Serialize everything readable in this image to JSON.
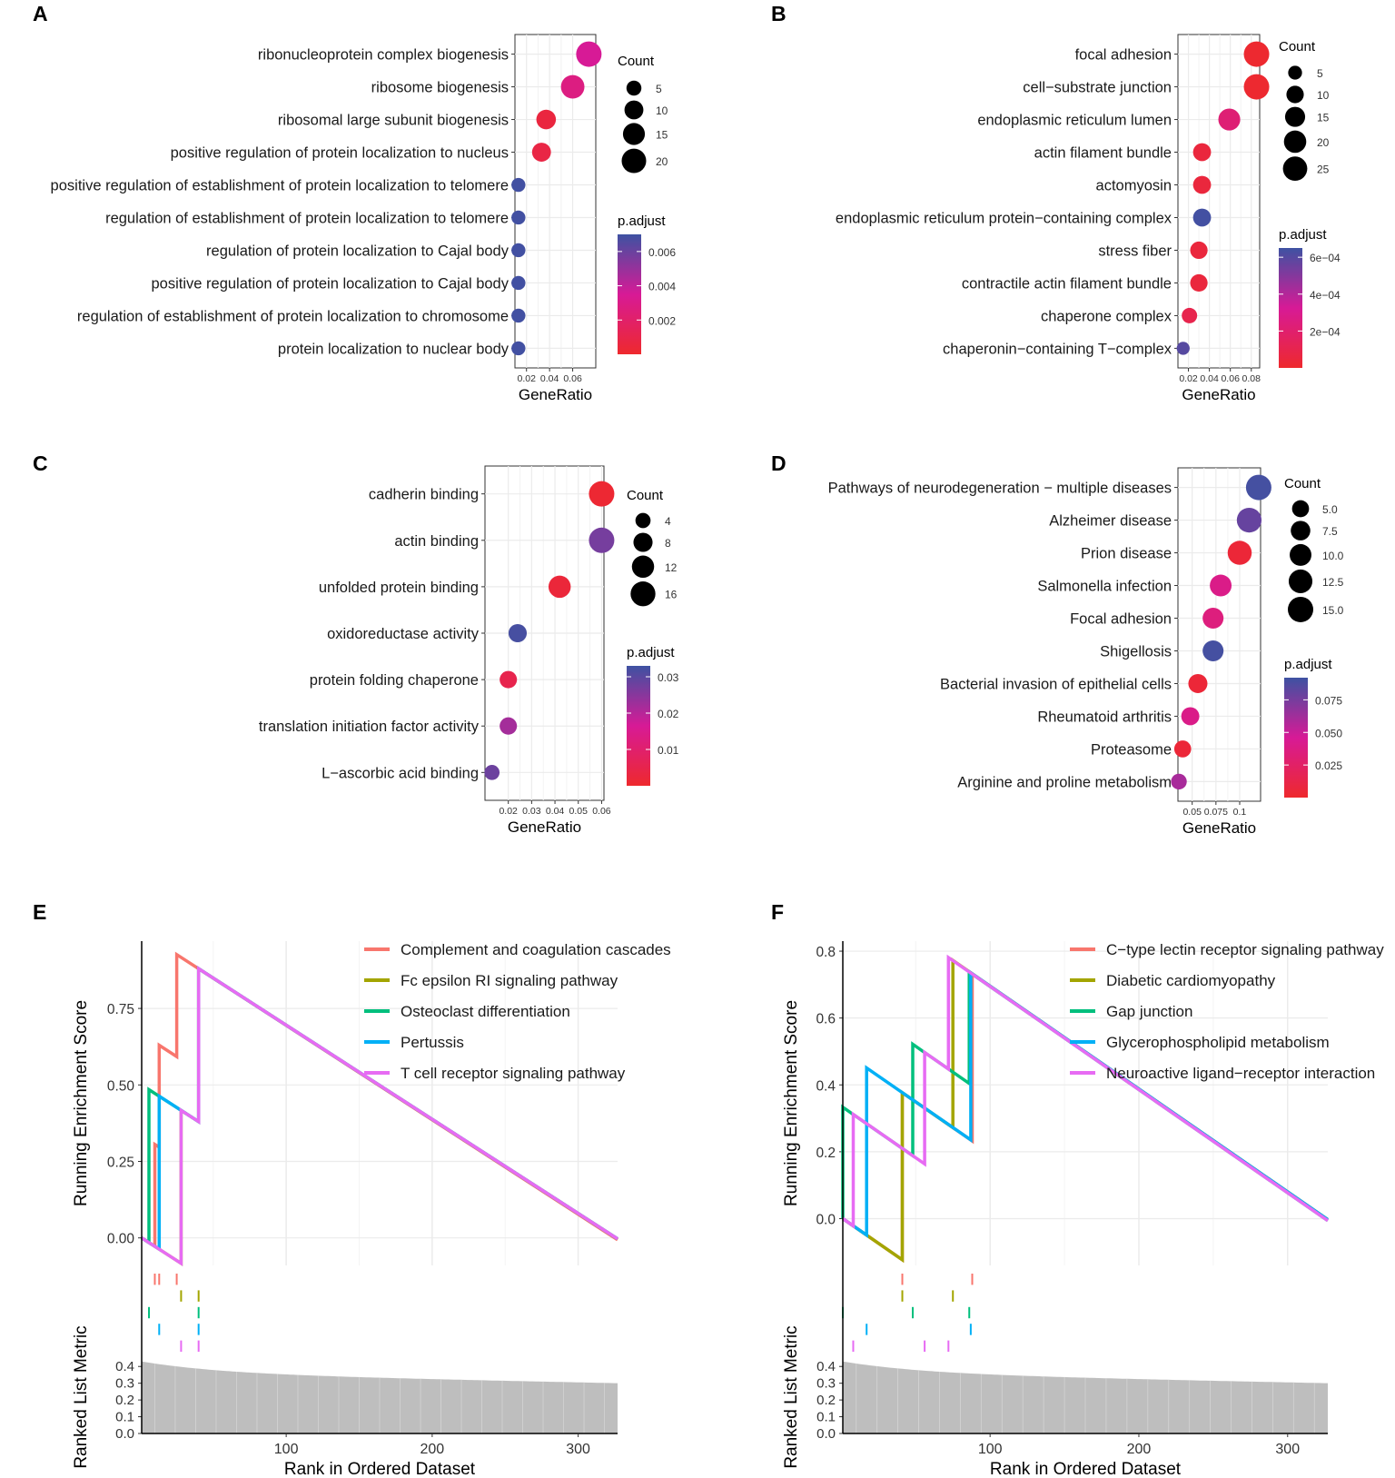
{
  "chart_data": [
    {
      "panel": "A",
      "type": "scatter",
      "xlabel": "GeneRatio",
      "x_ticks": [
        0.02,
        0.04,
        0.06
      ],
      "x_tick_labels": [
        "0.02",
        "0.04",
        "0.06"
      ],
      "xlim": [
        0.01,
        0.08
      ],
      "terms": [
        {
          "term": "ribonucleoprotein complex biogenesis",
          "gene_ratio": 0.074,
          "count": 22,
          "p_adjust": 0.0035
        },
        {
          "term": "ribosome biogenesis",
          "gene_ratio": 0.06,
          "count": 18,
          "p_adjust": 0.0028
        },
        {
          "term": "ribosomal large subunit biogenesis",
          "gene_ratio": 0.037,
          "count": 11,
          "p_adjust": 0.0006
        },
        {
          "term": "positive regulation of protein localization to nucleus",
          "gene_ratio": 0.033,
          "count": 10,
          "p_adjust": 0.0008
        },
        {
          "term": "positive regulation of establishment of protein localization to telomere",
          "gene_ratio": 0.013,
          "count": 4,
          "p_adjust": 0.0069
        },
        {
          "term": "regulation of establishment of protein localization to telomere",
          "gene_ratio": 0.013,
          "count": 4,
          "p_adjust": 0.0069
        },
        {
          "term": "regulation of protein localization to Cajal body",
          "gene_ratio": 0.013,
          "count": 4,
          "p_adjust": 0.0069
        },
        {
          "term": "positive regulation of protein localization to Cajal body",
          "gene_ratio": 0.013,
          "count": 4,
          "p_adjust": 0.0069
        },
        {
          "term": "regulation of establishment of protein localization to chromosome",
          "gene_ratio": 0.013,
          "count": 4,
          "p_adjust": 0.0069
        },
        {
          "term": "protein localization to nuclear body",
          "gene_ratio": 0.013,
          "count": 4,
          "p_adjust": 0.0069
        }
      ],
      "count_legend": {
        "title": "Count",
        "values": [
          5,
          10,
          15,
          20
        ],
        "labels": [
          "5",
          "10",
          "15",
          "20"
        ]
      },
      "color_legend": {
        "title": "p.adjust",
        "min": 0.0,
        "max": 0.007,
        "ticks": [
          0.002,
          0.004,
          0.006
        ],
        "labels": [
          "0.002",
          "0.004",
          "0.006"
        ]
      }
    },
    {
      "panel": "B",
      "type": "scatter",
      "xlabel": "GeneRatio",
      "x_ticks": [
        0.02,
        0.04,
        0.06,
        0.08
      ],
      "x_tick_labels": [
        "0.02",
        "0.04",
        "0.06",
        "0.08"
      ],
      "xlim": [
        0.01,
        0.088
      ],
      "terms": [
        {
          "term": "focal adhesion",
          "gene_ratio": 0.085,
          "count": 28,
          "p_adjust": 1e-05
        },
        {
          "term": "cell−substrate junction",
          "gene_ratio": 0.085,
          "count": 28,
          "p_adjust": 1e-05
        },
        {
          "term": "endoplasmic reticulum lumen",
          "gene_ratio": 0.059,
          "count": 19,
          "p_adjust": 0.00022
        },
        {
          "term": "actin filament bundle",
          "gene_ratio": 0.033,
          "count": 11,
          "p_adjust": 5e-05
        },
        {
          "term": "actomyosin",
          "gene_ratio": 0.033,
          "count": 11,
          "p_adjust": 5e-05
        },
        {
          "term": "endoplasmic reticulum protein−containing complex",
          "gene_ratio": 0.033,
          "count": 11,
          "p_adjust": 0.00064
        },
        {
          "term": "stress fiber",
          "gene_ratio": 0.03,
          "count": 10,
          "p_adjust": 5e-05
        },
        {
          "term": "contractile actin filament bundle",
          "gene_ratio": 0.03,
          "count": 10,
          "p_adjust": 5e-05
        },
        {
          "term": "chaperone complex",
          "gene_ratio": 0.021,
          "count": 7,
          "p_adjust": 0.0001
        },
        {
          "term": "chaperonin−containing T−complex",
          "gene_ratio": 0.015,
          "count": 4,
          "p_adjust": 0.0006
        }
      ],
      "count_legend": {
        "title": "Count",
        "values": [
          5,
          10,
          15,
          20,
          25
        ],
        "labels": [
          "5",
          "10",
          "15",
          "20",
          "25"
        ]
      },
      "color_legend": {
        "title": "p.adjust",
        "min": 0.0,
        "max": 0.00065,
        "ticks": [
          0.0002,
          0.0004,
          0.0006
        ],
        "labels": [
          "2e−04",
          "4e−04",
          "6e−04"
        ]
      }
    },
    {
      "panel": "C",
      "type": "scatter",
      "xlabel": "GeneRatio",
      "x_ticks": [
        0.02,
        0.03,
        0.04,
        0.05,
        0.06
      ],
      "x_tick_labels": [
        "0.02",
        "0.03",
        "0.04",
        "0.05",
        "0.06"
      ],
      "xlim": [
        0.01,
        0.061
      ],
      "terms": [
        {
          "term": "cadherin binding",
          "gene_ratio": 0.06,
          "count": 17,
          "p_adjust": 0.001
        },
        {
          "term": "actin binding",
          "gene_ratio": 0.06,
          "count": 17,
          "p_adjust": 0.027
        },
        {
          "term": "unfolded protein binding",
          "gene_ratio": 0.042,
          "count": 12,
          "p_adjust": 0.002
        },
        {
          "term": "oxidoreductase activity",
          "gene_ratio": 0.024,
          "count": 7,
          "p_adjust": 0.032
        },
        {
          "term": "protein folding chaperone",
          "gene_ratio": 0.02,
          "count": 6,
          "p_adjust": 0.005
        },
        {
          "term": "translation initiation factor activity",
          "gene_ratio": 0.02,
          "count": 6,
          "p_adjust": 0.022
        },
        {
          "term": "L−ascorbic acid binding",
          "gene_ratio": 0.013,
          "count": 4,
          "p_adjust": 0.028
        }
      ],
      "count_legend": {
        "title": "Count",
        "values": [
          4,
          8,
          12,
          16
        ],
        "labels": [
          "4",
          "8",
          "12",
          "16"
        ]
      },
      "color_legend": {
        "title": "p.adjust",
        "min": 0.0,
        "max": 0.033,
        "ticks": [
          0.01,
          0.02,
          0.03
        ],
        "labels": [
          "0.01",
          "0.02",
          "0.03"
        ]
      }
    },
    {
      "panel": "D",
      "type": "scatter",
      "xlabel": "GeneRatio",
      "x_ticks": [
        0.05,
        0.075,
        0.1
      ],
      "x_tick_labels": [
        "0.05",
        "0.075",
        "0.1"
      ],
      "xlim": [
        0.035,
        0.122
      ],
      "terms": [
        {
          "term": "Pathways of neurodegeneration − multiple diseases",
          "gene_ratio": 0.12,
          "count": 15,
          "p_adjust": 0.09
        },
        {
          "term": "Alzheimer disease",
          "gene_ratio": 0.11,
          "count": 14,
          "p_adjust": 0.08
        },
        {
          "term": "Prion disease",
          "gene_ratio": 0.1,
          "count": 13,
          "p_adjust": 0.005
        },
        {
          "term": "Salmonella infection",
          "gene_ratio": 0.08,
          "count": 10,
          "p_adjust": 0.04
        },
        {
          "term": "Focal adhesion",
          "gene_ratio": 0.072,
          "count": 9,
          "p_adjust": 0.035
        },
        {
          "term": "Shigellosis",
          "gene_ratio": 0.072,
          "count": 9,
          "p_adjust": 0.09
        },
        {
          "term": "Bacterial invasion of epithelial cells",
          "gene_ratio": 0.056,
          "count": 7,
          "p_adjust": 0.005
        },
        {
          "term": "Rheumatoid arthritis",
          "gene_ratio": 0.048,
          "count": 6,
          "p_adjust": 0.04
        },
        {
          "term": "Proteasome",
          "gene_ratio": 0.04,
          "count": 5,
          "p_adjust": 0.005
        },
        {
          "term": "Arginine and proline metabolism",
          "gene_ratio": 0.036,
          "count": 4,
          "p_adjust": 0.06
        }
      ],
      "count_legend": {
        "title": "Count",
        "values": [
          5.0,
          7.5,
          10.0,
          12.5,
          15.0
        ],
        "labels": [
          "5.0",
          "7.5",
          "10.0",
          "12.5",
          "15.0"
        ]
      },
      "color_legend": {
        "title": "p.adjust",
        "min": 0.0,
        "max": 0.092,
        "ticks": [
          0.025,
          0.05,
          0.075
        ],
        "labels": [
          "0.025",
          "0.050",
          "0.075"
        ]
      }
    },
    {
      "panel": "E",
      "type": "line",
      "ylabel": "Running Enrichment Score",
      "ylabel2": "Ranked List Metric",
      "xlabel": "Rank in Ordered Dataset",
      "x_range": [
        1,
        327
      ],
      "x_ticks": [
        100,
        200,
        300
      ],
      "x_tick_labels": [
        "100",
        "200",
        "300"
      ],
      "y_range": [
        -0.09,
        0.97
      ],
      "y_ticks": [
        0,
        0.25,
        0.5,
        0.75
      ],
      "y_tick_labels": [
        "0.00",
        "0.25",
        "0.50",
        "0.75"
      ],
      "metric_range": [
        0,
        0.45
      ],
      "metric_ticks": [
        0,
        0.1,
        0.2,
        0.3,
        0.4
      ],
      "metric_tick_labels": [
        "0.0",
        "0.1",
        "0.2",
        "0.3",
        "0.4"
      ],
      "metric_start": 0.43,
      "metric_end": 0.3,
      "series": [
        {
          "name": "Complement and coagulation cascades",
          "color": "#F8766D",
          "hits": [
            10,
            13,
            25
          ]
        },
        {
          "name": "Fc epsilon RI signaling pathway",
          "color": "#A3A500",
          "hits": [
            28,
            40
          ]
        },
        {
          "name": "Osteoclast differentiation",
          "color": "#00BF7D",
          "hits": [
            6,
            40
          ]
        },
        {
          "name": "Pertussis",
          "color": "#00B0F6",
          "hits": [
            13,
            40
          ]
        },
        {
          "name": "T cell receptor signaling pathway",
          "color": "#E76BF3",
          "hits": [
            28,
            40
          ]
        }
      ]
    },
    {
      "panel": "F",
      "type": "line",
      "ylabel": "Running Enrichment Score",
      "ylabel2": "Ranked List Metric",
      "xlabel": "Rank in Ordered Dataset",
      "x_range": [
        1,
        327
      ],
      "x_ticks": [
        100,
        200,
        300
      ],
      "x_tick_labels": [
        "100",
        "200",
        "300"
      ],
      "y_range": [
        -0.14,
        0.83
      ],
      "y_ticks": [
        0,
        0.2,
        0.4,
        0.6,
        0.8
      ],
      "y_tick_labels": [
        "0.0",
        "0.2",
        "0.4",
        "0.6",
        "0.8"
      ],
      "metric_range": [
        0,
        0.45
      ],
      "metric_ticks": [
        0,
        0.1,
        0.2,
        0.3,
        0.4
      ],
      "metric_tick_labels": [
        "0.0",
        "0.1",
        "0.2",
        "0.3",
        "0.4"
      ],
      "metric_start": 0.43,
      "metric_end": 0.3,
      "series": [
        {
          "name": "C−type lectin receptor signaling pathway",
          "color": "#F8766D",
          "hits": [
            41,
            88
          ]
        },
        {
          "name": "Diabetic cardiomyopathy",
          "color": "#A3A500",
          "hits": [
            41,
            75
          ]
        },
        {
          "name": "Gap junction",
          "color": "#00BF7D",
          "hits": [
            1,
            48,
            86
          ]
        },
        {
          "name": "Glycerophospholipid metabolism",
          "color": "#00B0F6",
          "hits": [
            17,
            87
          ]
        },
        {
          "name": "Neuroactive ligand−receptor interaction",
          "color": "#E76BF3",
          "hits": [
            8,
            56,
            72
          ]
        }
      ]
    }
  ]
}
